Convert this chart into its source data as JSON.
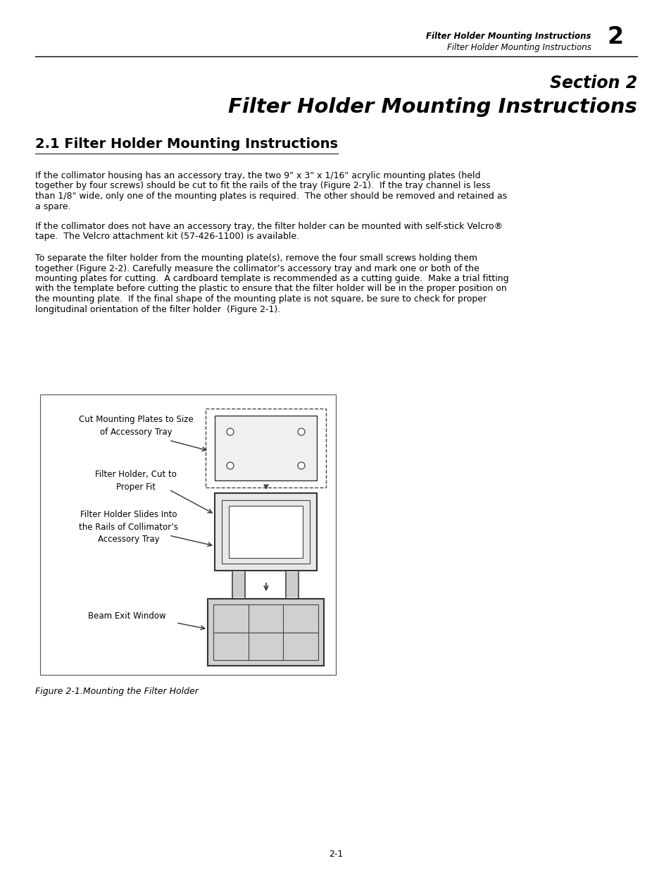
{
  "header_bold": "Filter Holder Mounting Instructions",
  "header_italic": "Filter Holder Mounting Instructions",
  "section_number": "2",
  "section_title_line1": "Section 2",
  "section_title_line2": "Filter Holder Mounting Instructions",
  "subsection_title": "2.1 Filter Holder Mounting Instructions",
  "paragraph1": "If the collimator housing has an accessory tray, the two 9\" x 3\" x 1/16\" acrylic mounting plates (held\ntogether by four screws) should be cut to fit the rails of the tray (Figure 2-1).  If the tray channel is less\nthan 1/8\" wide, only one of the mounting plates is required.  The other should be removed and retained as\na spare.",
  "paragraph2": "If the collimator does not have an accessory tray, the filter holder can be mounted with self-stick Velcro®\ntape.  The Velcro attachment kit (57-426-1100) is available.",
  "paragraph3": "To separate the filter holder from the mounting plate(s), remove the four small screws holding them\ntogether (Figure 2-2). Carefully measure the collimator’s accessory tray and mark one or both of the\nmounting plates for cutting.  A cardboard template is recommended as a cutting guide.  Make a trial fitting\nwith the template before cutting the plastic to ensure that the filter holder will be in the proper position on\nthe mounting plate.  If the final shape of the mounting plate is not square, be sure to check for proper\nlongitudinal orientation of the filter holder  (Figure 2-1).",
  "figure_caption": "Figure 2-1.Mounting the Filter Holder",
  "page_number": "2-1",
  "label_cut_mounting": "Cut Mounting Plates to Size\nof Accessory Tray",
  "label_filter_holder": "Filter Holder, Cut to\nProper Fit",
  "label_filter_slides": "Filter Holder Slides Into\nthe Rails of Collimator’s\nAccessory Tray",
  "label_beam_exit": "Beam Exit Window",
  "bg_color": "#ffffff",
  "text_color": "#000000",
  "line_color": "#000000"
}
